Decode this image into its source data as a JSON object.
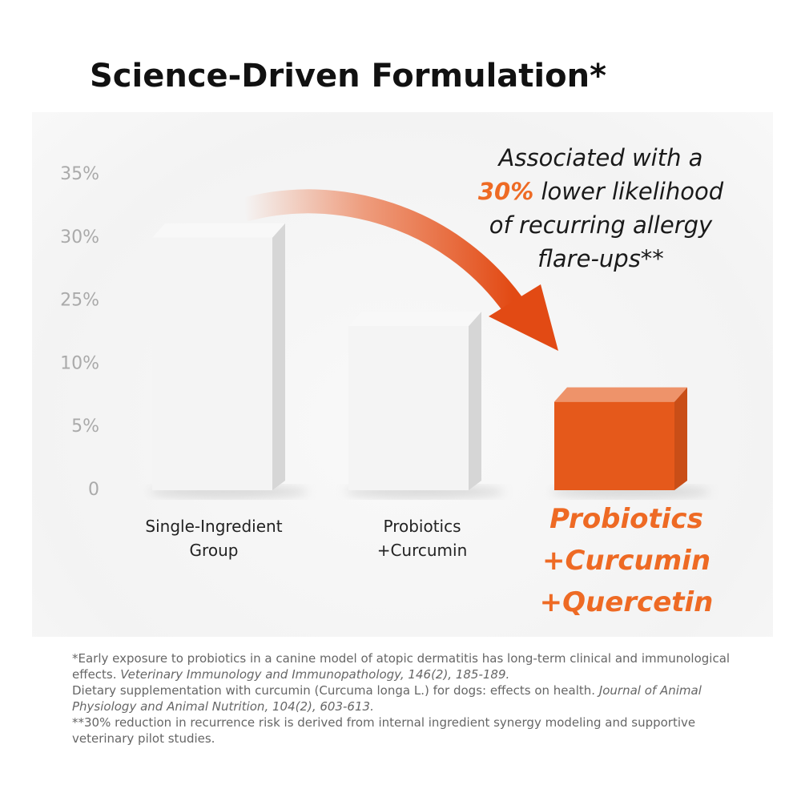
{
  "chart_data": {
    "type": "bar",
    "title": "Science-Driven Formulation*",
    "categories": [
      "Single-Ingredient Group",
      "Probiotics +Curcumin",
      "Probiotics +Curcumin +Quercetin"
    ],
    "values": [
      30,
      19,
      7
    ],
    "colors": [
      "#f4f4f4",
      "#f4f4f4",
      "#e5591b"
    ],
    "ylim": [
      0,
      35
    ],
    "yticks": [
      0,
      {
        "value": 5,
        "label": "5%"
      },
      {
        "value": 10,
        "label": "10%"
      },
      {
        "value": 25,
        "label": "25%"
      },
      {
        "value": 30,
        "label": "30%"
      },
      {
        "value": 35,
        "label": "35%"
      }
    ],
    "annotation": {
      "before": "Associated with a",
      "highlight": "30%",
      "after": "lower likelihood of recurring allergy flare-ups**"
    }
  },
  "footnotes": [
    {
      "text": "*Early exposure to probiotics in a canine model of atopic dermatitis has long-term clinical and immunological effects.",
      "source": "Veterinary Immunology and Immunopathology, 146(2), 185-189."
    },
    {
      "text": "Dietary supplementation with curcumin (Curcuma longa L.) for dogs: effects on health.",
      "source": "Journal of Animal Physiology and Animal Nutrition, 104(2), 603-613."
    },
    {
      "text": "**30% reduction in recurrence risk is derived from internal ingredient synergy modeling and supportive veterinary pilot studies."
    }
  ]
}
